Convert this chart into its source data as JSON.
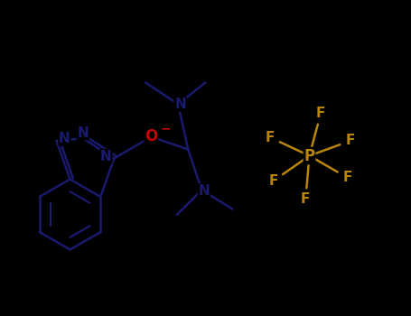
{
  "bg_color": "#000000",
  "bond_color": "#1a1a6e",
  "o_color": "#cc0000",
  "p_color": "#b8860b",
  "f_color": "#b8860b",
  "n_color": "#1a1a6e",
  "line_width": 1.8,
  "font_size_atom": 11,
  "xlim": [
    0,
    9.1
  ],
  "ylim": [
    0,
    7.0
  ]
}
